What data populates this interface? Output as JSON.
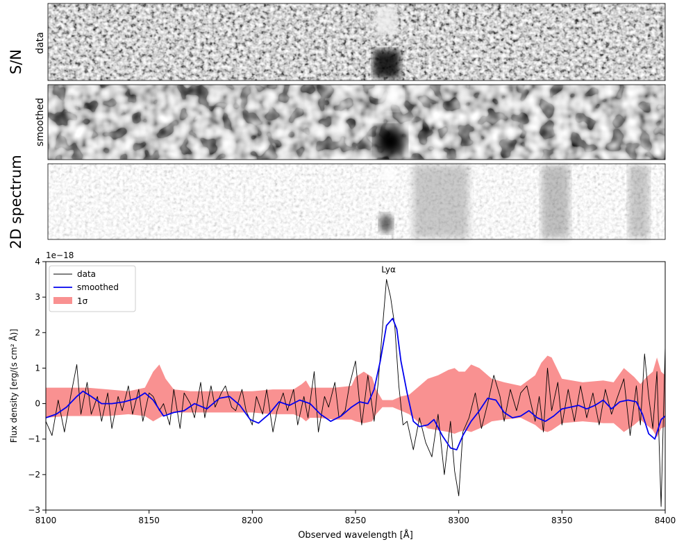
{
  "figure": {
    "row_labels": {
      "sn": "S/N",
      "twod": "2D spectrum",
      "data": "data",
      "smoothed": "smoothed"
    },
    "offset_text": "1e−18"
  },
  "chart_data": {
    "type": "line",
    "title": "",
    "xlabel": "Observed wavelength [Å]",
    "ylabel": "Flux density [erg/(s cm² Å)]",
    "xlim": [
      8100,
      8400
    ],
    "ylim": [
      -3,
      4
    ],
    "y_scale_factor": "1e-18",
    "xticks": [
      8100,
      8150,
      8200,
      8250,
      8300,
      8350,
      8400
    ],
    "yticks": [
      -3,
      -2,
      -1,
      0,
      1,
      2,
      3,
      4
    ],
    "grid": false,
    "legend": {
      "placement": "top-left",
      "entries": [
        "data",
        "smoothed",
        "1σ"
      ]
    },
    "annotations": [
      {
        "text": "Lyα",
        "x": 8266,
        "y": 3.7
      }
    ],
    "colors": {
      "data": "#000000",
      "smoothed": "#0000ee",
      "band": "#f99191"
    },
    "series": [
      {
        "name": "data",
        "x": [
          8100,
          8103,
          8106,
          8109,
          8112,
          8115,
          8117,
          8120,
          8122,
          8125,
          8127,
          8130,
          8132,
          8135,
          8137,
          8140,
          8142,
          8145,
          8147,
          8150,
          8152,
          8155,
          8157,
          8160,
          8162,
          8165,
          8167,
          8170,
          8172,
          8175,
          8177,
          8180,
          8182,
          8185,
          8187,
          8190,
          8192,
          8195,
          8197,
          8200,
          8202,
          8205,
          8207,
          8210,
          8212,
          8215,
          8217,
          8220,
          8222,
          8225,
          8227,
          8230,
          8232,
          8235,
          8237,
          8240,
          8242,
          8245,
          8247,
          8250,
          8253,
          8256,
          8259,
          8261,
          8263,
          8265,
          8267,
          8269,
          8271,
          8273,
          8275,
          8278,
          8281,
          8284,
          8287,
          8290,
          8293,
          8296,
          8298,
          8300,
          8302,
          8305,
          8308,
          8311,
          8314,
          8317,
          8320,
          8322,
          8325,
          8328,
          8330,
          8333,
          8335,
          8337,
          8339,
          8341,
          8343,
          8345,
          8348,
          8350,
          8353,
          8356,
          8359,
          8362,
          8365,
          8368,
          8371,
          8374,
          8377,
          8380,
          8383,
          8386,
          8388,
          8390,
          8392,
          8394,
          8396,
          8398,
          8400
        ],
        "y": [
          -0.5,
          -0.9,
          0.1,
          -0.8,
          0.2,
          1.1,
          -0.3,
          0.6,
          -0.3,
          0.2,
          -0.5,
          0.3,
          -0.7,
          0.2,
          -0.2,
          0.5,
          -0.3,
          0.4,
          -0.5,
          0.3,
          0.2,
          -0.2,
          0.0,
          -0.6,
          0.4,
          -0.7,
          0.3,
          0.0,
          -0.4,
          0.6,
          -0.4,
          0.5,
          -0.1,
          0.3,
          0.5,
          -0.1,
          -0.2,
          0.4,
          -0.2,
          -0.6,
          0.2,
          -0.3,
          0.4,
          -0.8,
          -0.2,
          0.3,
          -0.2,
          0.4,
          -0.6,
          0.2,
          -0.4,
          0.9,
          -0.8,
          0.2,
          -0.1,
          0.6,
          -0.4,
          -0.2,
          0.5,
          1.2,
          -0.6,
          0.8,
          -0.5,
          0.6,
          2.1,
          3.5,
          3.0,
          2.2,
          0.5,
          -0.6,
          -0.5,
          -1.3,
          -0.4,
          -1.1,
          -1.5,
          -0.3,
          -2.0,
          -0.5,
          -1.9,
          -2.6,
          -0.8,
          -0.4,
          0.3,
          -0.7,
          0.0,
          0.8,
          0.2,
          -0.5,
          0.4,
          -0.2,
          0.3,
          0.5,
          0.0,
          -0.5,
          0.2,
          -0.8,
          1.0,
          -0.2,
          0.6,
          -0.6,
          0.4,
          -0.5,
          0.5,
          -0.4,
          0.3,
          -0.6,
          0.4,
          -0.3,
          0.2,
          0.7,
          -0.9,
          0.5,
          -0.6,
          1.4,
          0.2,
          -0.7,
          0.9,
          -2.9,
          1.6
        ]
      },
      {
        "name": "smoothed",
        "x": [
          8100,
          8105,
          8110,
          8115,
          8118,
          8122,
          8127,
          8132,
          8138,
          8144,
          8148,
          8152,
          8157,
          8162,
          8167,
          8172,
          8178,
          8184,
          8189,
          8194,
          8199,
          8203,
          8208,
          8213,
          8218,
          8223,
          8228,
          8233,
          8238,
          8243,
          8248,
          8252,
          8256,
          8259,
          8262,
          8265,
          8268,
          8270,
          8272,
          8275,
          8278,
          8281,
          8285,
          8288,
          8292,
          8296,
          8299,
          8302,
          8306,
          8310,
          8314,
          8318,
          8322,
          8326,
          8330,
          8334,
          8338,
          8342,
          8346,
          8350,
          8354,
          8358,
          8362,
          8366,
          8370,
          8374,
          8378,
          8382,
          8386,
          8389,
          8392,
          8395,
          8398,
          8400
        ],
        "y": [
          -0.4,
          -0.3,
          -0.1,
          0.2,
          0.35,
          0.2,
          0.0,
          0.0,
          0.05,
          0.15,
          0.3,
          0.1,
          -0.35,
          -0.25,
          -0.2,
          0.0,
          -0.15,
          0.15,
          0.2,
          -0.05,
          -0.45,
          -0.55,
          -0.3,
          0.05,
          -0.05,
          0.1,
          0.0,
          -0.3,
          -0.5,
          -0.35,
          -0.1,
          0.05,
          0.0,
          0.4,
          1.2,
          2.2,
          2.4,
          2.1,
          1.2,
          0.3,
          -0.5,
          -0.65,
          -0.6,
          -0.45,
          -0.9,
          -1.25,
          -1.3,
          -0.9,
          -0.5,
          -0.2,
          0.15,
          0.1,
          -0.25,
          -0.4,
          -0.35,
          -0.2,
          -0.4,
          -0.5,
          -0.35,
          -0.15,
          -0.1,
          -0.05,
          -0.15,
          -0.05,
          0.1,
          -0.15,
          0.05,
          0.1,
          0.05,
          -0.3,
          -0.85,
          -1.0,
          -0.45,
          -0.35
        ]
      }
    ],
    "band_1sigma": {
      "name": "1σ",
      "x": [
        8100,
        8110,
        8120,
        8130,
        8140,
        8148,
        8152,
        8155,
        8158,
        8162,
        8170,
        8180,
        8190,
        8200,
        8210,
        8220,
        8224,
        8226,
        8228,
        8232,
        8240,
        8248,
        8250,
        8254,
        8258,
        8260,
        8263,
        8268,
        8272,
        8276,
        8280,
        8285,
        8290,
        8295,
        8298,
        8300,
        8303,
        8306,
        8310,
        8316,
        8322,
        8330,
        8337,
        8340,
        8343,
        8345,
        8350,
        8360,
        8370,
        8375,
        8380,
        8385,
        8388,
        8391,
        8394,
        8396,
        8398,
        8400
      ],
      "upper": [
        0.45,
        0.45,
        0.45,
        0.4,
        0.35,
        0.45,
        0.9,
        1.1,
        0.7,
        0.4,
        0.35,
        0.35,
        0.35,
        0.35,
        0.4,
        0.4,
        0.55,
        0.65,
        0.45,
        0.45,
        0.45,
        0.5,
        0.75,
        0.9,
        0.75,
        0.4,
        0.1,
        0.1,
        0.2,
        0.25,
        0.45,
        0.7,
        0.8,
        0.95,
        1.0,
        0.9,
        0.9,
        1.1,
        1.0,
        0.7,
        0.6,
        0.5,
        0.8,
        1.15,
        1.35,
        1.3,
        0.7,
        0.6,
        0.65,
        0.6,
        1.0,
        0.75,
        0.55,
        0.75,
        0.9,
        1.3,
        0.9,
        0.8
      ],
      "lower": [
        -0.4,
        -0.35,
        -0.35,
        -0.35,
        -0.3,
        -0.35,
        -0.5,
        -0.4,
        -0.3,
        -0.25,
        -0.25,
        -0.25,
        -0.25,
        -0.25,
        -0.3,
        -0.3,
        -0.4,
        -0.5,
        -0.4,
        -0.4,
        -0.45,
        -0.45,
        -0.5,
        -0.55,
        -0.5,
        -0.3,
        -0.1,
        -0.1,
        -0.2,
        -0.3,
        -0.5,
        -0.7,
        -0.75,
        -0.8,
        -0.85,
        -0.8,
        -0.75,
        -0.8,
        -0.7,
        -0.5,
        -0.45,
        -0.4,
        -0.6,
        -0.75,
        -0.8,
        -0.75,
        -0.55,
        -0.5,
        -0.55,
        -0.55,
        -0.8,
        -0.6,
        -0.45,
        -0.6,
        -0.75,
        -0.95,
        -0.7,
        -0.65
      ]
    }
  }
}
